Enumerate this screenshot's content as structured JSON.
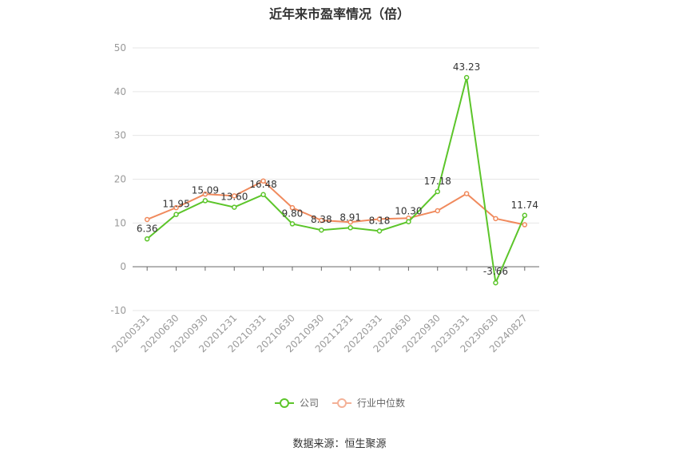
{
  "chart_data": {
    "type": "line",
    "title": "近年来市盈率情况（倍）",
    "categories": [
      "20200331",
      "20200630",
      "20200930",
      "20201231",
      "20210331",
      "20210630",
      "20210930",
      "20211231",
      "20220331",
      "20220630",
      "20220930",
      "20230331",
      "20230630",
      "20240827"
    ],
    "series": [
      {
        "name": "公司",
        "color": "#5cc52a",
        "values": [
          6.36,
          11.95,
          15.09,
          13.6,
          16.48,
          9.8,
          8.38,
          8.91,
          8.18,
          10.3,
          17.18,
          43.23,
          -3.66,
          11.74
        ],
        "labels": [
          "6.36",
          "11.95",
          "15.09",
          "13.60",
          "16.48",
          "9.80",
          "8.38",
          "8.91",
          "8.18",
          "10.30",
          "17.18",
          "43.23",
          "-3.66",
          "11.74"
        ]
      },
      {
        "name": "行业中位数",
        "color": "#f08a5d",
        "values": [
          10.8,
          13.5,
          16.6,
          16.2,
          19.6,
          13.5,
          10.6,
          10.2,
          10.9,
          11.1,
          12.8,
          16.7,
          11.0,
          9.6
        ]
      }
    ],
    "yticks": [
      -10,
      0,
      10,
      20,
      30,
      40,
      50
    ],
    "ylim": [
      -10,
      50
    ],
    "grid": true,
    "legend_position": "bottom"
  },
  "source_text": "数据来源：恒生聚源"
}
